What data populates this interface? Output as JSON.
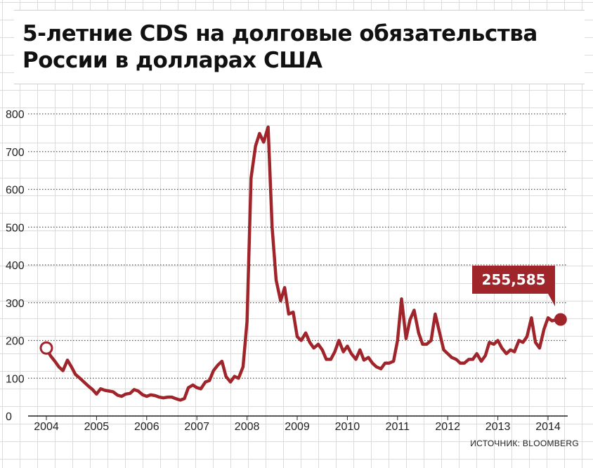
{
  "chart_data": {
    "type": "line",
    "title": "5-летние CDS на долговые обязательства России в долларах США",
    "xlabel": "",
    "ylabel": "",
    "ylim": [
      0,
      800
    ],
    "xlim": [
      2004.0,
      2014.4
    ],
    "y_ticks": [
      "0",
      "100",
      "200",
      "300",
      "400",
      "500",
      "600",
      "700",
      "800"
    ],
    "x_ticks": [
      "2004",
      "2005",
      "2006",
      "2007",
      "2008",
      "2009",
      "2010",
      "2011",
      "2012",
      "2013",
      "2014"
    ],
    "grid": true,
    "source": "ИСТОЧНИК: BLOOMBERG",
    "annotation": {
      "label": "255,585",
      "value": 255.585
    },
    "line_color": "#a0252b",
    "series": [
      {
        "x": [
          2004.0,
          2004.08,
          2004.17,
          2004.25,
          2004.33,
          2004.42,
          2004.5,
          2004.58,
          2004.67,
          2004.75,
          2004.83,
          2004.92,
          2005.0,
          2005.08,
          2005.17,
          2005.25,
          2005.33,
          2005.42,
          2005.5,
          2005.58,
          2005.67,
          2005.75,
          2005.83,
          2005.92,
          2006.0,
          2006.08,
          2006.17,
          2006.25,
          2006.33,
          2006.42,
          2006.5,
          2006.58,
          2006.67,
          2006.75,
          2006.83,
          2006.92,
          2007.0,
          2007.08,
          2007.17,
          2007.25,
          2007.33,
          2007.42,
          2007.5,
          2007.58,
          2007.67,
          2007.75,
          2007.83,
          2007.92,
          2008.0,
          2008.08,
          2008.17,
          2008.25,
          2008.33,
          2008.42,
          2008.5,
          2008.58,
          2008.67,
          2008.75,
          2008.83,
          2008.92,
          2009.0,
          2009.08,
          2009.17,
          2009.25,
          2009.33,
          2009.42,
          2009.5,
          2009.58,
          2009.67,
          2009.75,
          2009.83,
          2009.92,
          2010.0,
          2010.08,
          2010.17,
          2010.25,
          2010.33,
          2010.42,
          2010.5,
          2010.58,
          2010.67,
          2010.75,
          2010.83,
          2010.92,
          2011.0,
          2011.08,
          2011.17,
          2011.25,
          2011.33,
          2011.42,
          2011.5,
          2011.58,
          2011.67,
          2011.75,
          2011.83,
          2011.92,
          2012.0,
          2012.08,
          2012.17,
          2012.25,
          2012.33,
          2012.42,
          2012.5,
          2012.58,
          2012.67,
          2012.75,
          2012.83,
          2012.92,
          2013.0,
          2013.08,
          2013.17,
          2013.25,
          2013.33,
          2013.42,
          2013.5,
          2013.58,
          2013.67,
          2013.75,
          2013.83,
          2013.92,
          2014.0,
          2014.08,
          2014.17,
          2014.25
        ],
        "values": [
          180,
          160,
          145,
          130,
          120,
          148,
          130,
          110,
          100,
          90,
          80,
          70,
          58,
          72,
          68,
          66,
          64,
          55,
          52,
          58,
          60,
          70,
          66,
          56,
          52,
          56,
          54,
          50,
          48,
          50,
          50,
          46,
          42,
          46,
          75,
          82,
          75,
          72,
          90,
          94,
          120,
          135,
          145,
          105,
          90,
          105,
          100,
          130,
          250,
          630,
          715,
          748,
          725,
          765,
          500,
          360,
          305,
          340,
          270,
          275,
          210,
          200,
          220,
          195,
          180,
          190,
          175,
          150,
          150,
          170,
          200,
          170,
          185,
          165,
          150,
          175,
          148,
          155,
          140,
          130,
          125,
          140,
          140,
          145,
          200,
          310,
          205,
          255,
          280,
          220,
          190,
          190,
          200,
          270,
          225,
          175,
          165,
          155,
          150,
          140,
          140,
          150,
          150,
          165,
          145,
          160,
          195,
          190,
          200,
          180,
          165,
          175,
          170,
          200,
          195,
          210,
          260,
          195,
          180,
          230,
          260,
          252,
          255,
          255.585
        ]
      }
    ]
  }
}
